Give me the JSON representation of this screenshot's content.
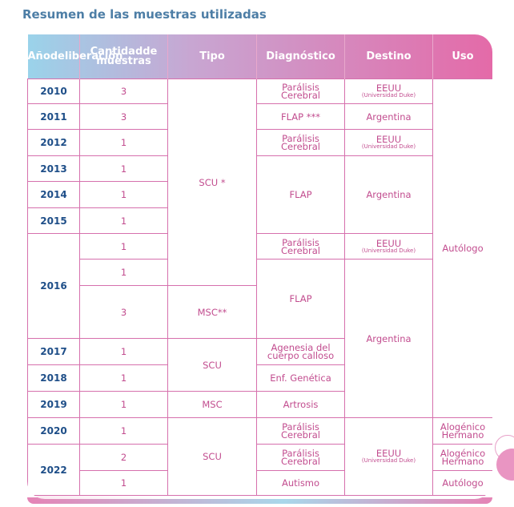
{
  "title": "Resumen de las muestras utilizadas",
  "table": {
    "header": [
      [
        "Año",
        "de",
        "liberación"
      ],
      [
        "Cantidad",
        "de muestras"
      ],
      "Tipo",
      "Diagnóstico",
      "Destino",
      "Uso"
    ],
    "rows": [
      [
        "2010",
        3,
        "SCU *",
        [
          "Parálisis",
          "Cerebral"
        ],
        [
          "EEUU",
          "(Universidad Duke)"
        ],
        "Autólogo"
      ],
      [
        "2011",
        3,
        "FLAP ***",
        "Argentina"
      ],
      [
        "2012",
        1,
        [
          "Parálisis",
          "Cerebral"
        ],
        [
          "EEUU",
          "(Universidad Duke)"
        ]
      ],
      [
        "2013",
        1,
        "FLAP",
        "Argentina"
      ],
      [
        "2014",
        1
      ],
      [
        "2015",
        1
      ],
      [
        "2016",
        1,
        [
          "Parálisis",
          "Cerebral"
        ],
        [
          "EEUU",
          "(Universidad Duke)"
        ]
      ],
      [
        1,
        "FLAP",
        "Argentina"
      ],
      [
        3,
        "MSC**"
      ],
      [
        "2017",
        1,
        "SCU",
        [
          "Agenesia del",
          "cuerpo calloso"
        ]
      ],
      [
        "2018",
        1,
        "Enf. Genética"
      ],
      [
        "2019",
        1,
        "MSC",
        "Artrosis"
      ],
      [
        "2020",
        1,
        "SCU",
        [
          "Parálisis",
          "Cerebral"
        ],
        [
          "EEUU",
          "(Universidad Duke)"
        ],
        [
          "Alogénico",
          "Hermano"
        ]
      ],
      [
        "2022",
        2,
        [
          "Parálisis",
          "Cerebral"
        ],
        [
          "Alogénico",
          "Hermano"
        ]
      ],
      [
        1,
        "Autismo",
        "Autólogo"
      ]
    ]
  }
}
